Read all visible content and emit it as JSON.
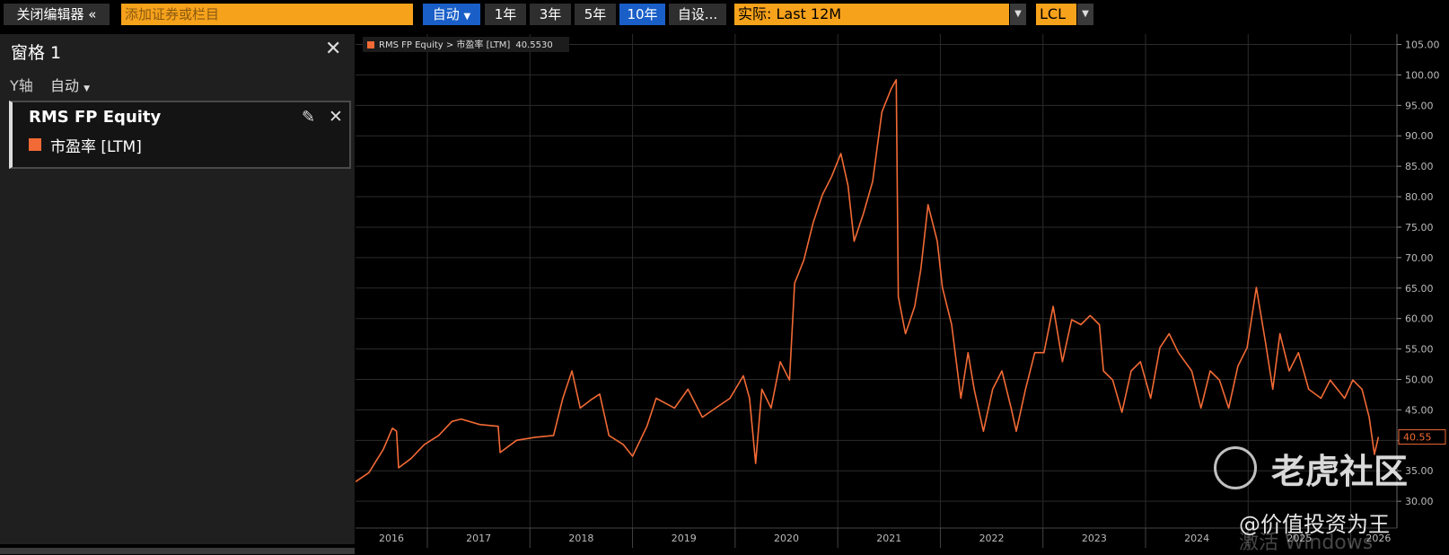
{
  "toolbar": {
    "close_editor": "关闭编辑器",
    "search_placeholder": "添加证券或栏目",
    "auto": "自动",
    "periods": [
      "1年",
      "3年",
      "5年",
      "10年",
      "自设..."
    ],
    "actual": "实际: Last 12M",
    "currency": "LCL"
  },
  "panel": {
    "title": "窗格 1",
    "y_axis_label": "Y轴",
    "y_axis_mode": "自动",
    "security": "RMS FP Equity",
    "field": "市盈率 [LTM]"
  },
  "overlay": {
    "brand": "老虎社区",
    "author": "@价值投资为王",
    "activation": "激活 Windows"
  },
  "chart_data": {
    "type": "line",
    "x": [
      2016.3,
      2016.43,
      2016.57,
      2016.66,
      2016.7,
      2016.72,
      2016.84,
      2016.97,
      2017.11,
      2017.24,
      2017.33,
      2017.51,
      2017.69,
      2017.71,
      2017.87,
      2018.05,
      2018.23,
      2018.32,
      2018.41,
      2018.49,
      2018.59,
      2018.68,
      2018.77,
      2018.91,
      2019.0,
      2019.14,
      2019.23,
      2019.41,
      2019.54,
      2019.68,
      2019.81,
      2019.95,
      2020.08,
      2020.14,
      2020.2,
      2020.26,
      2020.35,
      2020.44,
      2020.53,
      2020.58,
      2020.67,
      2020.76,
      2020.85,
      2020.94,
      2021.03,
      2021.1,
      2021.16,
      2021.25,
      2021.34,
      2021.43,
      2021.52,
      2021.57,
      2021.59,
      2021.66,
      2021.75,
      2021.81,
      2021.88,
      2021.97,
      2022.02,
      2022.11,
      2022.2,
      2022.27,
      2022.33,
      2022.42,
      2022.51,
      2022.6,
      2022.69,
      2022.74,
      2022.83,
      2022.92,
      2023.01,
      2023.1,
      2023.19,
      2023.28,
      2023.37,
      2023.46,
      2023.55,
      2023.59,
      2023.68,
      2023.77,
      2023.86,
      2023.95,
      2024.05,
      2024.14,
      2024.23,
      2024.32,
      2024.45,
      2024.54,
      2024.63,
      2024.72,
      2024.81,
      2024.9,
      2024.99,
      2025.08,
      2025.17,
      2025.24,
      2025.31,
      2025.4,
      2025.49,
      2025.59,
      2025.71,
      2025.8,
      2025.94,
      2026.02,
      2026.11,
      2026.18,
      2026.23,
      2026.27
    ],
    "series": [
      {
        "name": "RMS FP Equity > 市盈率 [LTM]",
        "color": "#f26a35",
        "values": [
          33.2,
          34.7,
          38.5,
          42.0,
          41.5,
          35.5,
          37.0,
          39.3,
          40.8,
          43.1,
          43.5,
          42.6,
          42.3,
          38.0,
          40.0,
          40.5,
          40.8,
          46.9,
          51.4,
          45.3,
          46.6,
          47.6,
          40.8,
          39.3,
          37.4,
          42.3,
          46.9,
          45.3,
          48.4,
          43.8,
          45.3,
          46.9,
          50.6,
          46.9,
          36.2,
          48.4,
          45.3,
          52.9,
          49.9,
          65.8,
          69.6,
          75.7,
          80.3,
          83.3,
          87.1,
          81.8,
          72.7,
          77.2,
          82.5,
          93.9,
          97.7,
          99.2,
          63.6,
          57.5,
          62.0,
          68.1,
          78.7,
          72.7,
          65.1,
          59.0,
          46.9,
          54.4,
          48.4,
          41.5,
          48.4,
          51.4,
          45.3,
          41.5,
          48.4,
          54.4,
          54.4,
          62.0,
          52.9,
          59.8,
          59.0,
          60.5,
          59.0,
          51.4,
          49.9,
          44.6,
          51.4,
          52.9,
          46.9,
          55.2,
          57.5,
          54.4,
          51.4,
          45.3,
          51.4,
          49.9,
          45.3,
          52.2,
          55.2,
          65.1,
          56.0,
          48.4,
          57.5,
          51.4,
          54.4,
          48.4,
          46.9,
          49.9,
          46.9,
          49.9,
          48.4,
          43.8,
          37.7,
          40.553
        ]
      }
    ],
    "current_value": {
      "value": 40.553,
      "legend_label": "40.5530",
      "axis_label": "40.55"
    },
    "xlim": [
      2016.3,
      2026.45
    ],
    "xticks": [
      {
        "value": 2016.65,
        "label": "2016"
      },
      {
        "value": 2017.5,
        "label": "2017"
      },
      {
        "value": 2018.5,
        "label": "2018"
      },
      {
        "value": 2019.5,
        "label": "2019"
      },
      {
        "value": 2020.5,
        "label": "2020"
      },
      {
        "value": 2021.5,
        "label": "2021"
      },
      {
        "value": 2022.5,
        "label": "2022"
      },
      {
        "value": 2023.5,
        "label": "2023"
      },
      {
        "value": 2024.5,
        "label": "2024"
      },
      {
        "value": 2025.5,
        "label": "2025"
      },
      {
        "value": 2026.27,
        "label": "2026"
      }
    ],
    "xgrid": [
      2017,
      2018,
      2019,
      2020,
      2021,
      2022,
      2023,
      2024,
      2025,
      2026
    ],
    "ylim": [
      25.6,
      106.4
    ],
    "yticks": [
      {
        "value": 30,
        "label": "30.00"
      },
      {
        "value": 35,
        "label": "35.00"
      },
      {
        "value": 40,
        "label": "40.00"
      },
      {
        "value": 45,
        "label": "45.00"
      },
      {
        "value": 50,
        "label": "50.00"
      },
      {
        "value": 55,
        "label": "55.00"
      },
      {
        "value": 60,
        "label": "60.00"
      },
      {
        "value": 65,
        "label": "65.00"
      },
      {
        "value": 70,
        "label": "70.00"
      },
      {
        "value": 75,
        "label": "75.00"
      },
      {
        "value": 80,
        "label": "80.00"
      },
      {
        "value": 85,
        "label": "85.00"
      },
      {
        "value": 90,
        "label": "90.00"
      },
      {
        "value": 95,
        "label": "95.00"
      },
      {
        "value": 100,
        "label": "100.00"
      },
      {
        "value": 105,
        "label": "105.00"
      }
    ],
    "grid": true
  }
}
